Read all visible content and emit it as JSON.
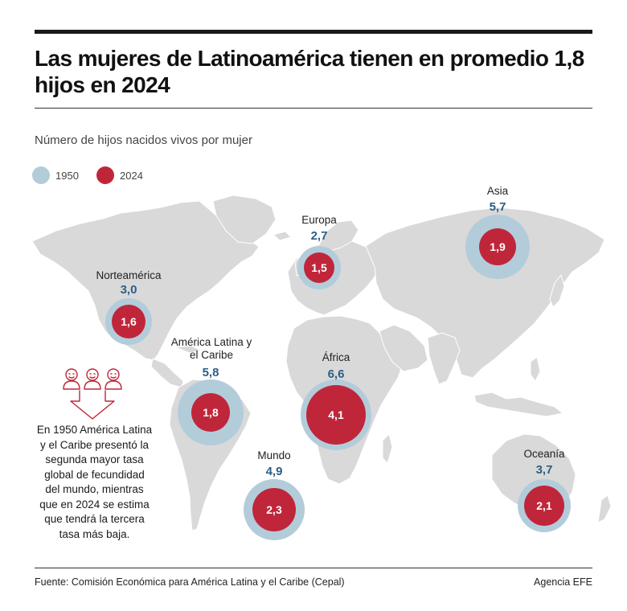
{
  "title": "Las mujeres de Latinoamérica tienen en promedio 1,8 hijos en 2024",
  "subtitle": "Número de hijos nacidos vivos por mujer",
  "legend": {
    "year_1950": "1950",
    "year_2024": "2024",
    "color_1950": "#b3ccda",
    "color_2024": "#c0263a"
  },
  "regions": [
    {
      "name": "Norteamérica",
      "v1950_label": "3,0",
      "v2024_label": "1,6",
      "v1950": 3.0,
      "v2024": 1.6
    },
    {
      "name": "América Latina y el Caribe",
      "v1950_label": "5,8",
      "v2024_label": "1,8",
      "v1950": 5.8,
      "v2024": 1.8
    },
    {
      "name": "Europa",
      "v1950_label": "2,7",
      "v2024_label": "1,5",
      "v1950": 2.7,
      "v2024": 1.5
    },
    {
      "name": "África",
      "v1950_label": "6,6",
      "v2024_label": "4,1",
      "v1950": 6.6,
      "v2024": 4.1
    },
    {
      "name": "Asia",
      "v1950_label": "5,7",
      "v2024_label": "1,9",
      "v1950": 5.7,
      "v2024": 1.9
    },
    {
      "name": "Oceanía",
      "v1950_label": "3,7",
      "v2024_label": "2,1",
      "v1950": 3.7,
      "v2024": 2.1
    },
    {
      "name": "Mundo",
      "v1950_label": "4,9",
      "v2024_label": "2,3",
      "v1950": 4.9,
      "v2024": 2.3
    }
  ],
  "note": "En 1950 América Latina y el Caribe presentó la segunda mayor tasa global de fecundidad del mundo, mientras que en 2024 se estima que tendrá la tercera tasa más baja.",
  "source": "Fuente: Comisión Económica para América Latina y el Caribe (Cepal)",
  "credit": "Agencia EFE"
}
